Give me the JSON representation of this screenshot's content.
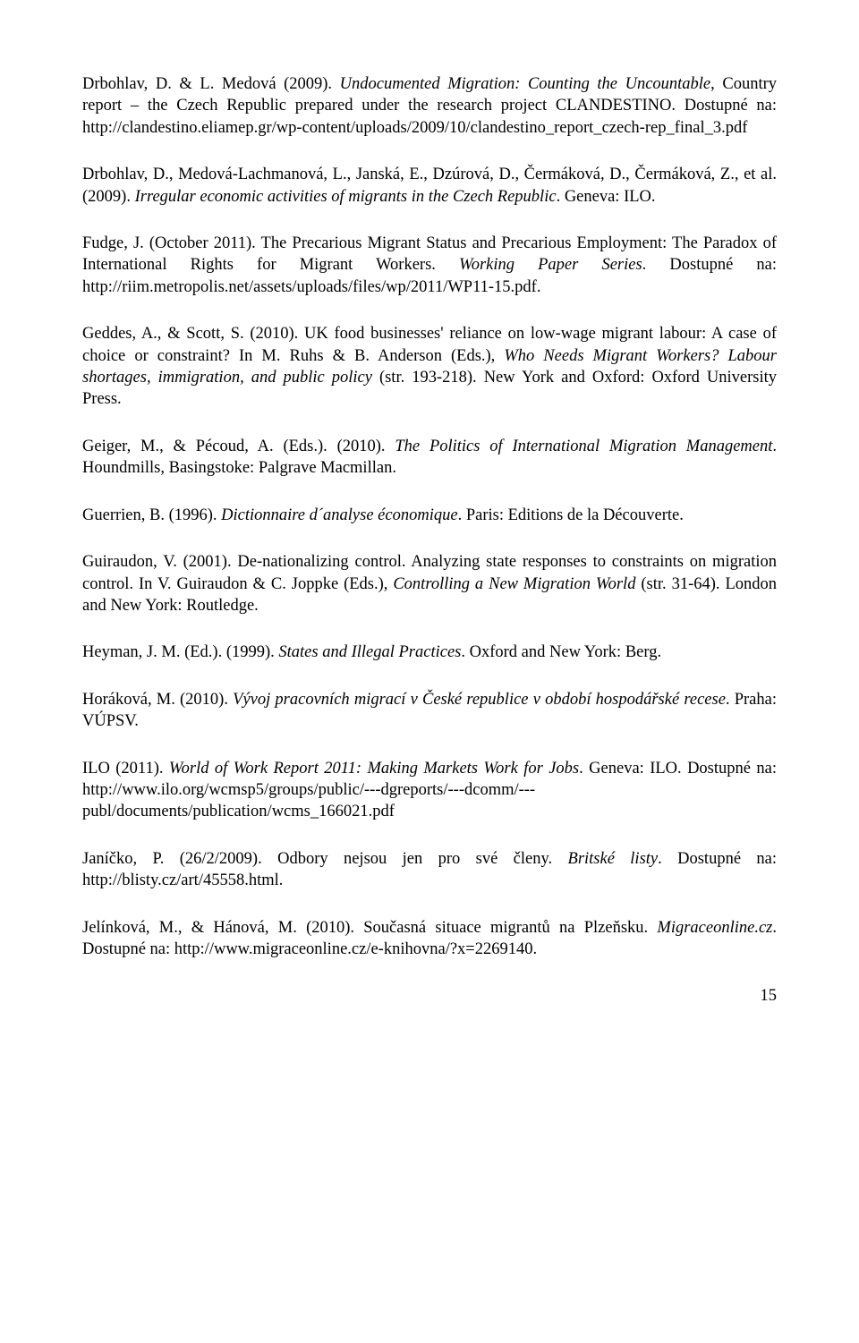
{
  "refs": [
    {
      "pre": "Drbohlav, D. & L. Medová (2009). ",
      "italic1": "Undocumented Migration: Counting the Uncountable",
      "mid1": ", Country report – the Czech Republic prepared under the research project CLANDESTINO. Dostupné na: http://clandestino.eliamep.gr/wp-content/uploads/2009/10/clandestino_report_czech-rep_final_3.pdf"
    },
    {
      "pre": "Drbohlav, D., Medová-Lachmanová, L., Janská, E., Dzúrová, D., Čermáková, D., Čermáková, Z., et al. (2009). ",
      "italic1": "Irregular economic activities of migrants in the Czech Republic",
      "mid1": ". Geneva: ILO."
    },
    {
      "pre": "Fudge, J. (October 2011). The Precarious Migrant Status and Precarious Employment: The Paradox of International Rights for Migrant Workers. ",
      "italic1": "Working Paper Series",
      "mid1": ". Dostupné na: http://riim.metropolis.net/assets/uploads/files/wp/2011/WP11-15.pdf."
    },
    {
      "pre": "Geddes, A., & Scott, S. (2010). UK food businesses' reliance on low-wage migrant labour: A case of choice or constraint? In M. Ruhs & B. Anderson (Eds.), ",
      "italic1": "Who Needs Migrant Workers? Labour shortages, immigration, and public policy",
      "mid1": " (str. 193-218). New York and Oxford: Oxford University Press."
    },
    {
      "pre": "Geiger, M., & Pécoud, A. (Eds.). (2010). ",
      "italic1": "The Politics of International Migration Management",
      "mid1": ". Houndmills, Basingstoke: Palgrave Macmillan."
    },
    {
      "pre": "Guerrien, B. (1996). ",
      "italic1": "Dictionnaire d´analyse économique",
      "mid1": ". Paris: Editions de la Découverte."
    },
    {
      "pre": "Guiraudon, V. (2001). De-nationalizing control. Analyzing state responses to constraints on migration control. In V. Guiraudon & C. Joppke (Eds.), ",
      "italic1": "Controlling a New Migration World",
      "mid1": " (str. 31-64). London and New York: Routledge."
    },
    {
      "pre": "Heyman, J. M. (Ed.). (1999). ",
      "italic1": "States and Illegal Practices",
      "mid1": ". Oxford and New York: Berg."
    },
    {
      "pre": "Horáková, M. (2010). ",
      "italic1": "Vývoj pracovních migrací v České republice v období hospodářské recese",
      "mid1": ". Praha: VÚPSV."
    },
    {
      "pre": "ILO (2011). ",
      "italic1": "World of Work Report 2011: Making Markets Work for Jobs",
      "mid1": ". Geneva: ILO. Dostupné na: http://www.ilo.org/wcmsp5/groups/public/---dgreports/---dcomm/---publ/documents/publication/wcms_166021.pdf"
    },
    {
      "pre": "Janíčko, P. (26/2/2009). Odbory nejsou jen pro své členy. ",
      "italic1": "Britské listy",
      "mid1": ". Dostupné na: http://blisty.cz/art/45558.html."
    },
    {
      "pre": "Jelínková, M., & Hánová, M. (2010). Současná situace migrantů na Plzeňsku. ",
      "italic1": "Migraceonline.cz",
      "mid1": ". Dostupné na: http://www.migraceonline.cz/e-knihovna/?x=2269140."
    }
  ],
  "page_number": "15"
}
